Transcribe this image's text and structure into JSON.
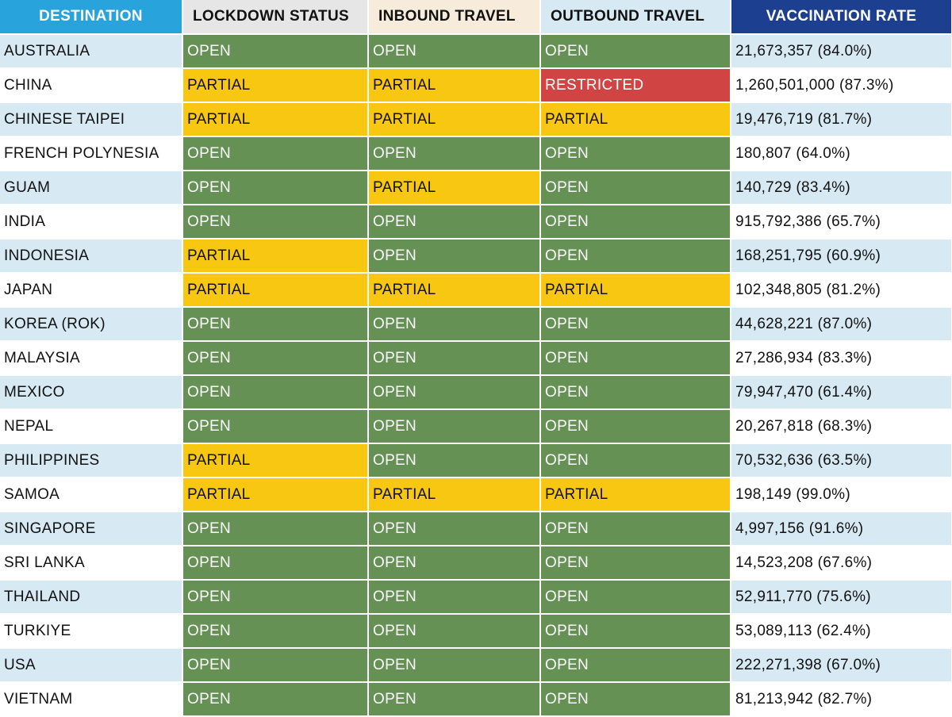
{
  "colors": {
    "header_destination": "#29a3dc",
    "header_lockdown": "#e6e6e6",
    "header_inbound": "#f7ecdb",
    "header_outbound": "#d7e9f2",
    "header_vaccination": "#1c3f8f",
    "header_dark_text": "#111111",
    "header_light_text": "#ffffff",
    "row_band_light": "#d7e9f2",
    "row_band_white": "#ffffff",
    "OPEN": "#659155",
    "PARTIAL": "#f8c712",
    "RESTRICTED": "#d14444"
  },
  "headers": [
    "DESTINATION",
    "LOCKDOWN STATUS",
    "INBOUND TRAVEL",
    "OUTBOUND TRAVEL",
    "VACCINATION RATE"
  ],
  "rows": [
    {
      "destination": "AUSTRALIA",
      "lockdown": "OPEN",
      "inbound": "OPEN",
      "outbound": "OPEN",
      "vaccination": "21,673,357 (84.0%)"
    },
    {
      "destination": "CHINA",
      "lockdown": "PARTIAL",
      "inbound": "PARTIAL",
      "outbound": "RESTRICTED",
      "vaccination": "1,260,501,000 (87.3%)"
    },
    {
      "destination": "CHINESE TAIPEI",
      "lockdown": "PARTIAL",
      "inbound": "PARTIAL",
      "outbound": "PARTIAL",
      "vaccination": "19,476,719 (81.7%)"
    },
    {
      "destination": "FRENCH POLYNESIA",
      "lockdown": "OPEN",
      "inbound": "OPEN",
      "outbound": "OPEN",
      "vaccination": "180,807 (64.0%)"
    },
    {
      "destination": "GUAM",
      "lockdown": "OPEN",
      "inbound": "PARTIAL",
      "outbound": "OPEN",
      "vaccination": "140,729 (83.4%)"
    },
    {
      "destination": "INDIA",
      "lockdown": "OPEN",
      "inbound": "OPEN",
      "outbound": "OPEN",
      "vaccination": "915,792,386 (65.7%)"
    },
    {
      "destination": "INDONESIA",
      "lockdown": "PARTIAL",
      "inbound": "OPEN",
      "outbound": "OPEN",
      "vaccination": "168,251,795 (60.9%)"
    },
    {
      "destination": "JAPAN",
      "lockdown": "PARTIAL",
      "inbound": "PARTIAL",
      "outbound": "PARTIAL",
      "vaccination": "102,348,805 (81.2%)"
    },
    {
      "destination": "KOREA (ROK)",
      "lockdown": "OPEN",
      "inbound": "OPEN",
      "outbound": "OPEN",
      "vaccination": "44,628,221 (87.0%)"
    },
    {
      "destination": "MALAYSIA",
      "lockdown": "OPEN",
      "inbound": "OPEN",
      "outbound": "OPEN",
      "vaccination": "27,286,934 (83.3%)"
    },
    {
      "destination": "MEXICO",
      "lockdown": "OPEN",
      "inbound": "OPEN",
      "outbound": "OPEN",
      "vaccination": "79,947,470 (61.4%)"
    },
    {
      "destination": "NEPAL",
      "lockdown": "OPEN",
      "inbound": "OPEN",
      "outbound": "OPEN",
      "vaccination": "20,267,818 (68.3%)"
    },
    {
      "destination": "PHILIPPINES",
      "lockdown": "PARTIAL",
      "inbound": "OPEN",
      "outbound": "OPEN",
      "vaccination": "70,532,636 (63.5%)"
    },
    {
      "destination": "SAMOA",
      "lockdown": "PARTIAL",
      "inbound": "PARTIAL",
      "outbound": "PARTIAL",
      "vaccination": "198,149 (99.0%)"
    },
    {
      "destination": "SINGAPORE",
      "lockdown": "OPEN",
      "inbound": "OPEN",
      "outbound": "OPEN",
      "vaccination": "4,997,156 (91.6%)"
    },
    {
      "destination": "SRI LANKA",
      "lockdown": "OPEN",
      "inbound": "OPEN",
      "outbound": "OPEN",
      "vaccination": "14,523,208 (67.6%)"
    },
    {
      "destination": "THAILAND",
      "lockdown": "OPEN",
      "inbound": "OPEN",
      "outbound": "OPEN",
      "vaccination": "52,911,770 (75.6%)"
    },
    {
      "destination": "TURKIYE",
      "lockdown": "OPEN",
      "inbound": "OPEN",
      "outbound": "OPEN",
      "vaccination": "53,089,113 (62.4%)"
    },
    {
      "destination": "USA",
      "lockdown": "OPEN",
      "inbound": "OPEN",
      "outbound": "OPEN",
      "vaccination": "222,271,398 (67.0%)"
    },
    {
      "destination": "VIETNAM",
      "lockdown": "OPEN",
      "inbound": "OPEN",
      "outbound": "OPEN",
      "vaccination": "81,213,942 (82.7%)"
    }
  ]
}
